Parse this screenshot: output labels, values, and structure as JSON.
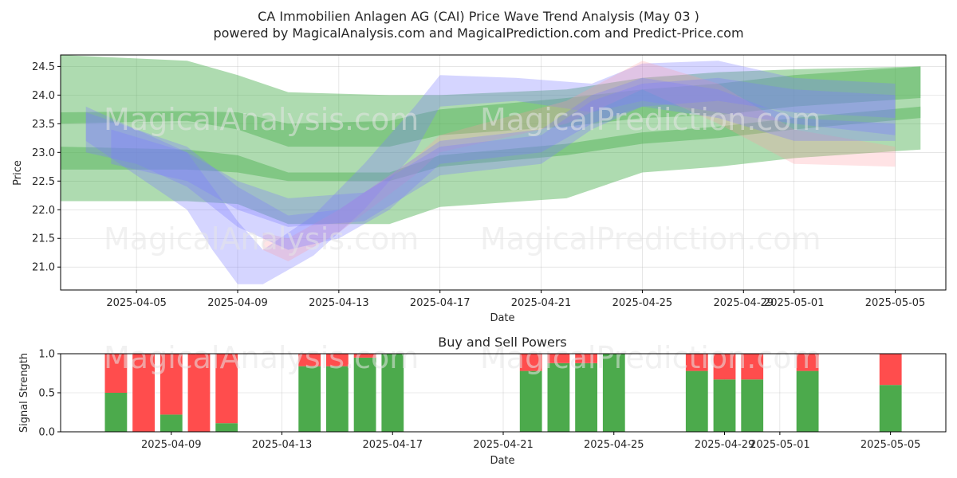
{
  "title_line1": "CA Immobilien Anlagen AG (CAI) Price Wave Trend Analysis (May 03 )",
  "title_line2": "powered by MagicalAnalysis.com and MagicalPrediction.com and Predict-Price.com",
  "watermarks": [
    "MagicalAnalysis.com",
    "MagicalPrediction.com"
  ],
  "colors": {
    "buy": "#4caa4c",
    "sell": "#ff4d4d",
    "band_green": "#4caf50",
    "band_blue": "#7b7bff",
    "band_red": "#ff9aa2"
  },
  "chart_data": [
    {
      "type": "area",
      "title": "",
      "xlabel": "Date",
      "ylabel": "Price",
      "x_ticks": [
        "2025-04-05",
        "2025-04-09",
        "2025-04-13",
        "2025-04-17",
        "2025-04-21",
        "2025-04-25",
        "2025-04-29",
        "2025-05-01",
        "2025-05-05"
      ],
      "y_ticks": [
        21.0,
        21.5,
        22.0,
        22.5,
        23.0,
        23.5,
        24.0,
        24.5
      ],
      "xlim": [
        "2025-04-02",
        "2025-05-07"
      ],
      "ylim": [
        20.6,
        24.7
      ],
      "grid": true,
      "series": [
        {
          "color": "green",
          "x": [
            "2025-04-02",
            "2025-04-07",
            "2025-04-09",
            "2025-04-11",
            "2025-04-15",
            "2025-04-17",
            "2025-04-22",
            "2025-04-25",
            "2025-04-28",
            "2025-05-01",
            "2025-05-06"
          ],
          "upper": [
            24.7,
            24.6,
            24.35,
            24.05,
            24.0,
            24.0,
            24.1,
            24.3,
            24.4,
            24.45,
            24.5
          ],
          "lower": [
            22.15,
            22.15,
            22.1,
            21.75,
            21.75,
            22.05,
            22.2,
            22.65,
            22.75,
            22.9,
            23.05
          ]
        },
        {
          "color": "green",
          "x": [
            "2025-04-02",
            "2025-04-07",
            "2025-04-09",
            "2025-04-11",
            "2025-04-15",
            "2025-04-17",
            "2025-04-22",
            "2025-04-25",
            "2025-04-28",
            "2025-05-01",
            "2025-05-06"
          ],
          "upper": [
            23.7,
            23.72,
            23.7,
            23.5,
            23.55,
            23.75,
            23.95,
            24.1,
            24.2,
            24.35,
            24.5
          ],
          "lower": [
            23.5,
            23.55,
            23.4,
            23.1,
            23.1,
            23.3,
            23.45,
            23.6,
            23.65,
            23.8,
            23.95
          ]
        },
        {
          "color": "green",
          "x": [
            "2025-04-02",
            "2025-04-07",
            "2025-04-09",
            "2025-04-11",
            "2025-04-15",
            "2025-04-17",
            "2025-04-22",
            "2025-04-25",
            "2025-04-28",
            "2025-05-01",
            "2025-05-06"
          ],
          "upper": [
            23.1,
            23.05,
            22.95,
            22.65,
            22.65,
            22.95,
            23.15,
            23.35,
            23.45,
            23.6,
            23.8
          ],
          "lower": [
            22.7,
            22.7,
            22.65,
            22.5,
            22.5,
            22.75,
            22.95,
            23.15,
            23.25,
            23.4,
            23.6
          ]
        },
        {
          "color": "blue",
          "x": [
            "2025-04-03",
            "2025-04-05",
            "2025-04-07",
            "2025-04-08",
            "2025-04-09",
            "2025-04-10",
            "2025-04-12",
            "2025-04-14",
            "2025-04-16",
            "2025-04-17",
            "2025-04-20",
            "2025-04-23",
            "2025-04-25",
            "2025-04-28",
            "2025-05-01",
            "2025-05-05"
          ],
          "upper": [
            23.7,
            23.4,
            23.0,
            22.4,
            21.8,
            21.3,
            21.9,
            22.8,
            23.8,
            24.35,
            24.3,
            24.2,
            24.55,
            24.6,
            24.3,
            24.2
          ],
          "lower": [
            23.2,
            22.6,
            22.0,
            21.3,
            20.7,
            20.7,
            21.2,
            22.0,
            23.0,
            23.8,
            23.9,
            23.7,
            23.9,
            23.7,
            23.5,
            23.3
          ]
        },
        {
          "color": "red",
          "x": [
            "2025-04-10",
            "2025-04-11",
            "2025-04-13",
            "2025-04-16",
            "2025-04-17",
            "2025-04-22",
            "2025-04-25",
            "2025-04-28",
            "2025-05-01",
            "2025-05-05"
          ],
          "upper": [
            21.6,
            21.5,
            22.0,
            22.9,
            23.3,
            23.9,
            24.6,
            24.2,
            23.4,
            23.1
          ],
          "lower": [
            21.3,
            21.1,
            21.6,
            22.6,
            23.0,
            23.5,
            24.1,
            23.5,
            22.8,
            22.75
          ]
        },
        {
          "color": "blue",
          "x": [
            "2025-04-03",
            "2025-04-05",
            "2025-04-07",
            "2025-04-09",
            "2025-04-11",
            "2025-04-13",
            "2025-04-15",
            "2025-04-17",
            "2025-04-21",
            "2025-04-23",
            "2025-04-25",
            "2025-04-28",
            "2025-05-01",
            "2025-05-05"
          ],
          "upper": [
            23.8,
            23.4,
            23.1,
            22.4,
            21.9,
            22.0,
            22.6,
            23.2,
            23.4,
            24.0,
            24.3,
            24.1,
            23.6,
            23.5
          ],
          "lower": [
            23.0,
            22.8,
            22.4,
            21.7,
            21.3,
            21.5,
            22.0,
            22.8,
            23.0,
            23.5,
            23.8,
            23.6,
            23.2,
            23.2
          ]
        },
        {
          "color": "blue",
          "x": [
            "2025-04-04",
            "2025-04-07",
            "2025-04-09",
            "2025-04-11",
            "2025-04-14",
            "2025-04-17",
            "2025-04-21",
            "2025-04-23",
            "2025-04-25",
            "2025-04-28",
            "2025-05-01",
            "2025-05-05"
          ],
          "upper": [
            23.4,
            23.0,
            22.5,
            22.2,
            22.3,
            23.1,
            23.3,
            23.9,
            24.2,
            24.3,
            24.1,
            24.0
          ],
          "lower": [
            22.8,
            22.5,
            22.0,
            21.7,
            21.8,
            22.6,
            22.8,
            23.4,
            23.8,
            23.9,
            23.7,
            23.6
          ]
        }
      ]
    },
    {
      "type": "bar",
      "title": "Buy and Sell Powers",
      "xlabel": "Date",
      "ylabel": "Signal Strength",
      "x_ticks": [
        "2025-04-09",
        "2025-04-13",
        "2025-04-17",
        "2025-04-21",
        "2025-04-25",
        "2025-04-29",
        "2025-05-01",
        "2025-05-05"
      ],
      "y_ticks": [
        0.0,
        0.5,
        1.0
      ],
      "xlim": [
        "2025-04-05",
        "2025-05-07"
      ],
      "ylim": [
        0,
        1
      ],
      "grid": true,
      "stacked": true,
      "x": [
        "2025-04-07",
        "2025-04-08",
        "2025-04-09",
        "2025-04-10",
        "2025-04-11",
        "2025-04-14",
        "2025-04-15",
        "2025-04-16",
        "2025-04-17",
        "2025-04-22",
        "2025-04-23",
        "2025-04-24",
        "2025-04-25",
        "2025-04-28",
        "2025-04-29",
        "2025-04-30",
        "2025-05-02",
        "2025-05-05"
      ],
      "buy": [
        0.5,
        0.0,
        0.22,
        0.0,
        0.11,
        0.84,
        0.84,
        0.95,
        1.0,
        0.78,
        0.88,
        0.88,
        1.0,
        0.78,
        0.67,
        0.67,
        0.78,
        0.6
      ],
      "sell": [
        0.5,
        1.0,
        0.78,
        1.0,
        0.89,
        0.16,
        0.16,
        0.05,
        0.0,
        0.22,
        0.12,
        0.12,
        0.0,
        0.22,
        0.33,
        0.33,
        0.22,
        0.4
      ]
    }
  ]
}
